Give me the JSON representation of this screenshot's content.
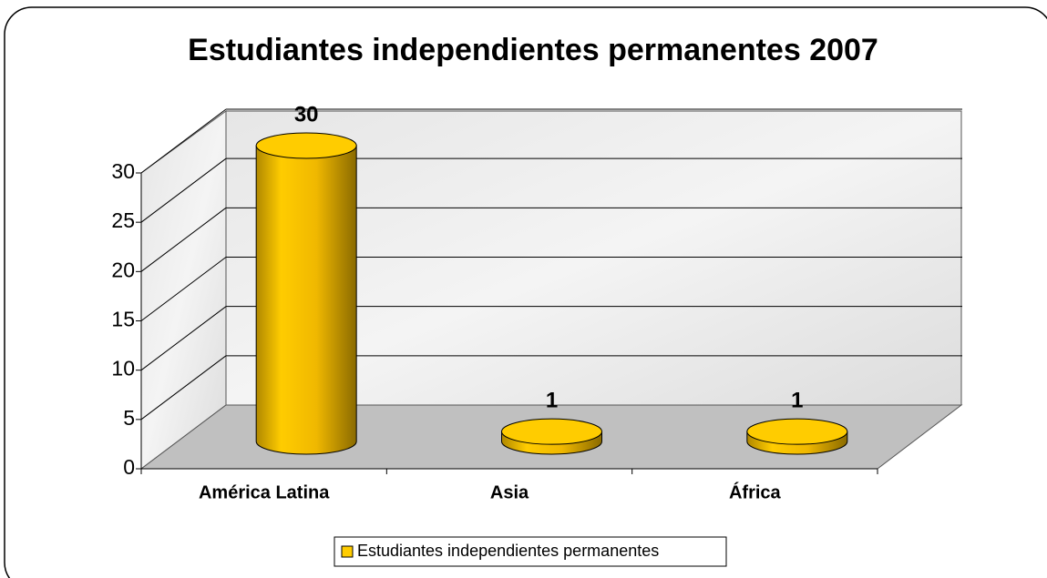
{
  "chart_data": {
    "type": "bar3d",
    "title": "Estudiantes independientes permanentes 2007",
    "categories": [
      "América Latina",
      "Asia",
      "África"
    ],
    "series": [
      {
        "name": "Estudiantes independientes permanentes",
        "color": "#ffcc00",
        "values": [
          30,
          1,
          1
        ]
      }
    ],
    "ylim": [
      0,
      30
    ],
    "yticks": [
      0,
      5,
      10,
      15,
      20,
      25,
      30
    ],
    "grid": true,
    "legend": "bottom"
  }
}
